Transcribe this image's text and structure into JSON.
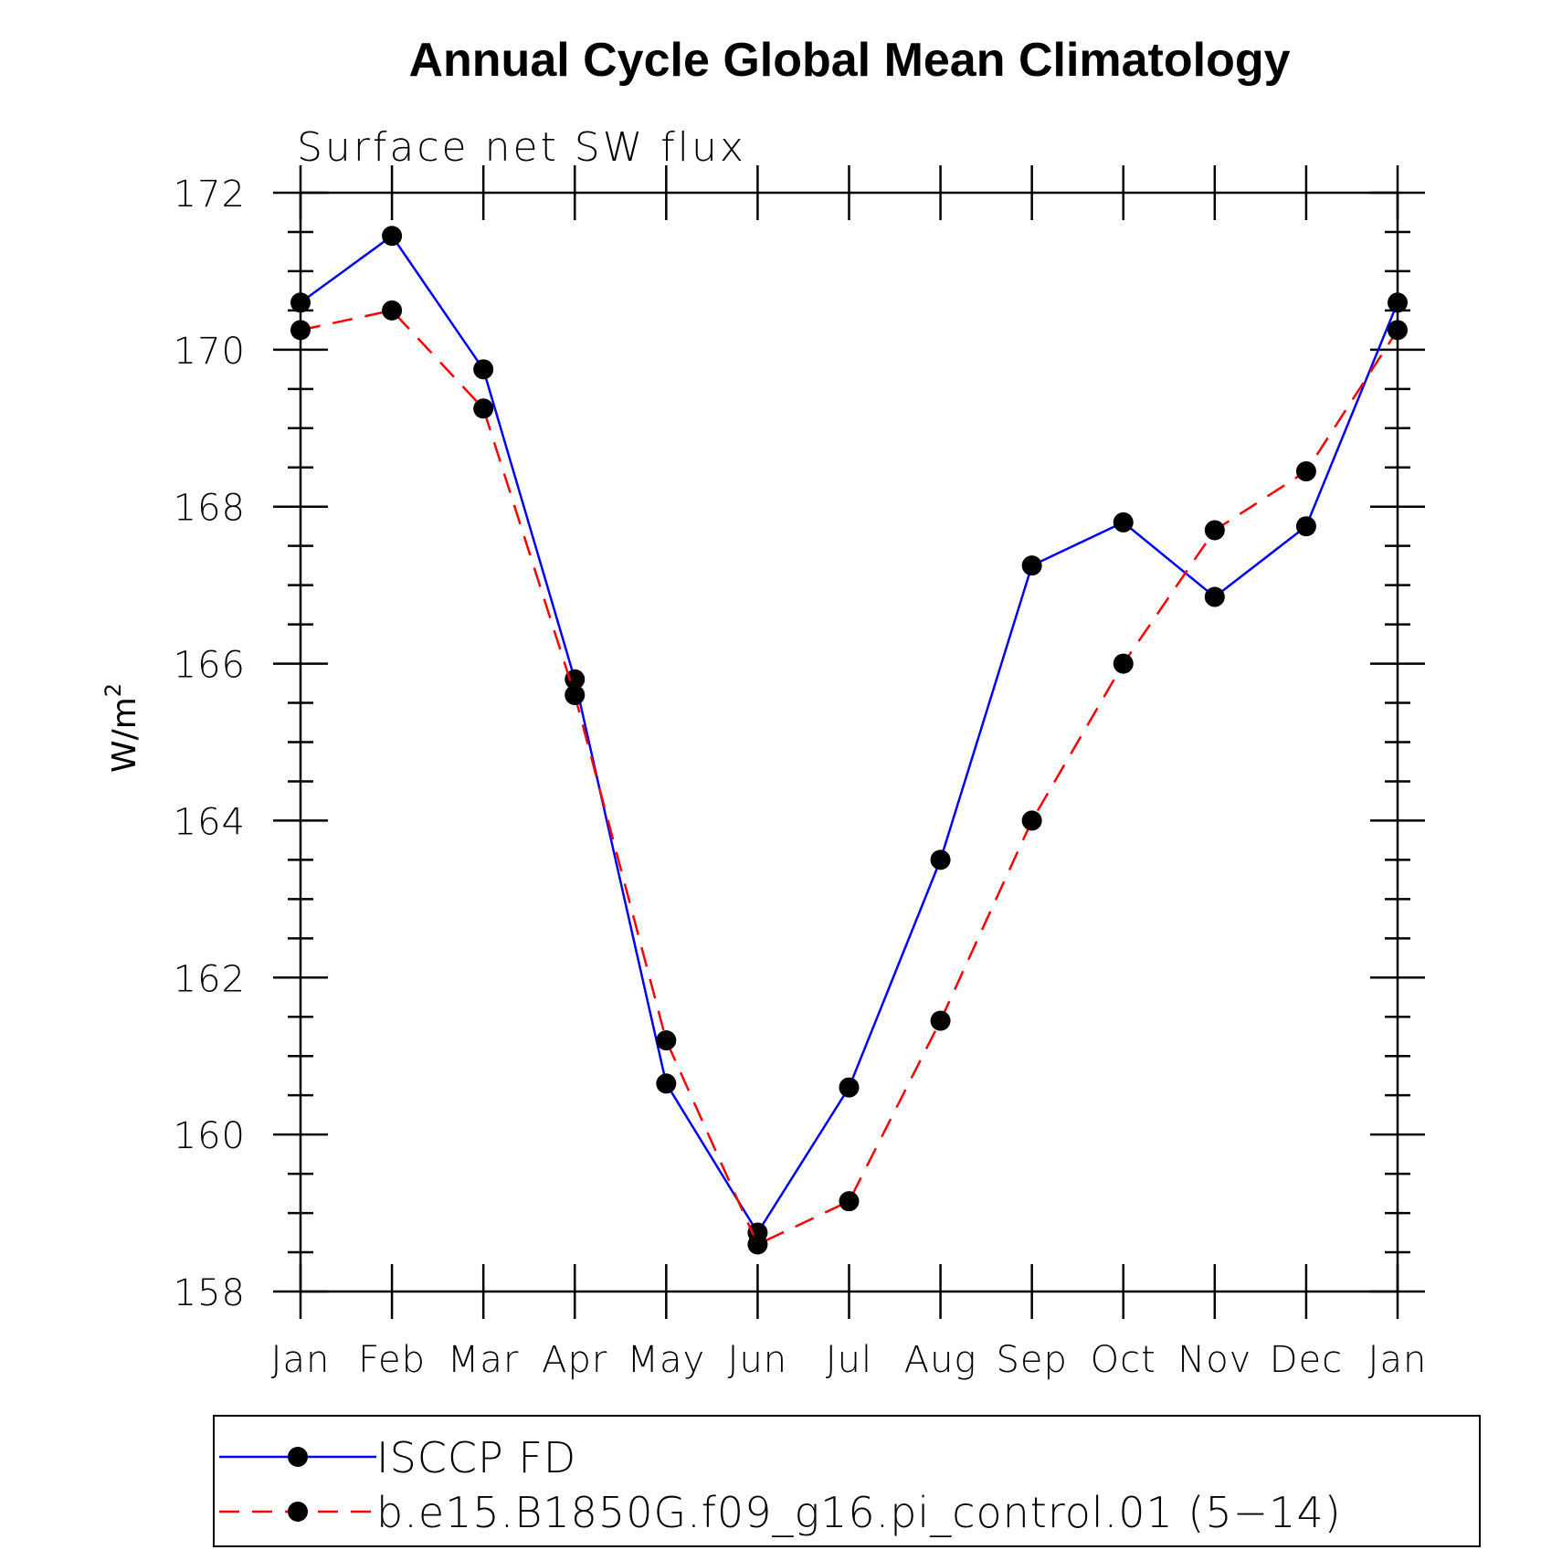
{
  "chart_data": {
    "type": "line",
    "title": "Annual Cycle Global Mean Climatology",
    "subtitle": "Surface net SW flux",
    "ylabel_base": "W/m",
    "ylabel_sup": "2",
    "categories": [
      "Jan",
      "Feb",
      "Mar",
      "Apr",
      "May",
      "Jun",
      "Jul",
      "Aug",
      "Sep",
      "Oct",
      "Nov",
      "Dec",
      "Jan"
    ],
    "ylim": [
      158,
      172
    ],
    "yticks": [
      158,
      160,
      162,
      164,
      166,
      168,
      170,
      172
    ],
    "grid": false,
    "legend_position": "bottom",
    "series": [
      {
        "name": "ISCCP FD",
        "color": "#0000ff",
        "dash": "solid",
        "marker": "filled-circle",
        "values": [
          170.6,
          171.45,
          169.75,
          165.8,
          160.65,
          158.75,
          160.6,
          163.5,
          167.25,
          167.8,
          166.85,
          167.75,
          170.6
        ]
      },
      {
        "name": "b.e15.B1850G.f09_g16.pi_control.01 (5−14)",
        "color": "#ff0000",
        "dash": "dashed",
        "marker": "filled-circle",
        "values": [
          170.25,
          170.5,
          169.25,
          165.6,
          161.2,
          158.6,
          159.15,
          161.45,
          164.0,
          166.0,
          167.7,
          168.45,
          170.25
        ]
      }
    ]
  }
}
